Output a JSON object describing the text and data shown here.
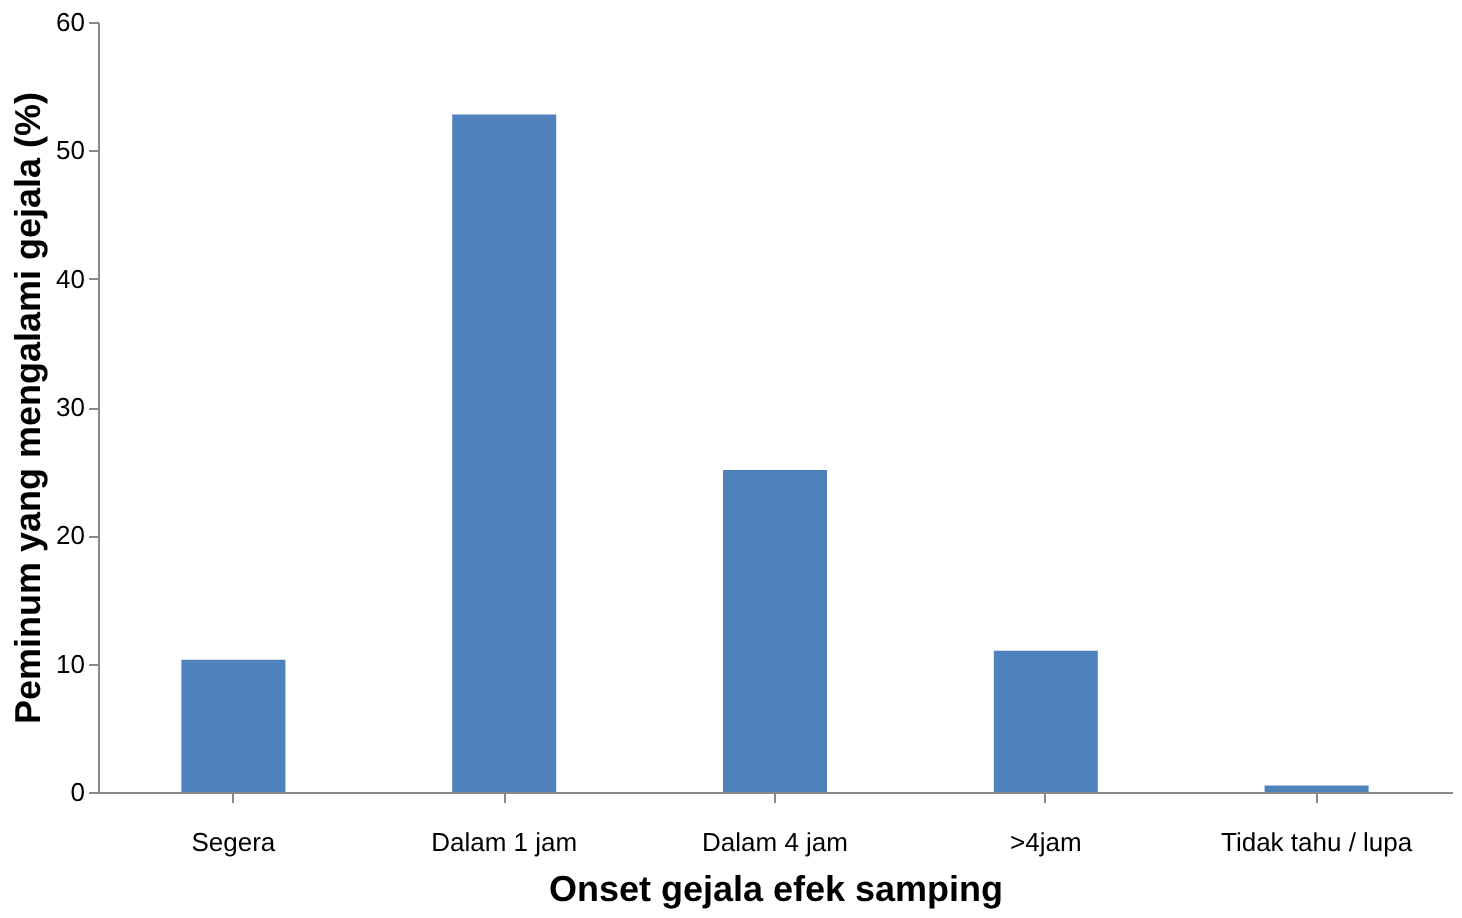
{
  "chart_data": {
    "type": "bar",
    "xlabel": "Onset gejala efek samping",
    "ylabel": "Peminum  yang mengalami gejala (%)",
    "categories": [
      "Segera",
      "Dalam 1 jam",
      "Dalam 4 jam",
      ">4jam",
      "Tidak tahu / lupa"
    ],
    "values": [
      10.3,
      52.8,
      25.1,
      11.0,
      0.5
    ],
    "color": "#4f81bd",
    "ylim": [
      0,
      60
    ],
    "yticks": [
      0,
      10,
      20,
      30,
      40,
      50,
      60
    ],
    "grid": false
  }
}
